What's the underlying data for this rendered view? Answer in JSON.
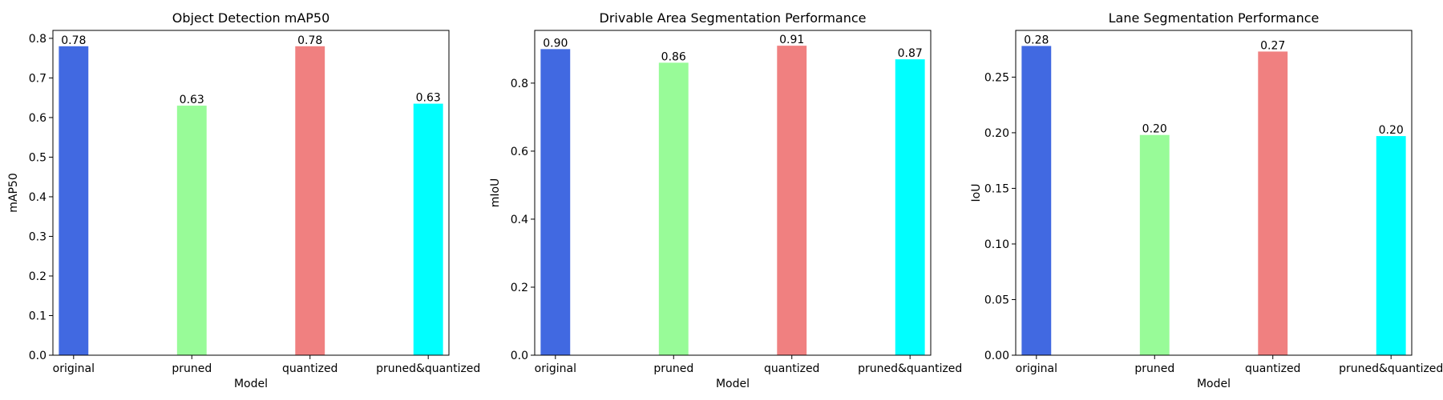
{
  "chart_data": [
    {
      "type": "bar",
      "title": "Object Detection mAP50",
      "xlabel": "Model",
      "ylabel": "mAP50",
      "categories": [
        "original",
        "pruned",
        "quantized",
        "pruned&quantized"
      ],
      "values": [
        0.78,
        0.63,
        0.78,
        0.635
      ],
      "value_labels": [
        "0.78",
        "0.63",
        "0.78",
        "0.63"
      ],
      "colors": [
        "#4169E1",
        "#98FB98",
        "#F08080",
        "#00FFFF"
      ],
      "ylim": [
        0,
        0.82
      ],
      "yticks": [
        0.0,
        0.1,
        0.2,
        0.3,
        0.4,
        0.5,
        0.6,
        0.7,
        0.8
      ],
      "ytick_labels": [
        "0.0",
        "0.1",
        "0.2",
        "0.3",
        "0.4",
        "0.5",
        "0.6",
        "0.7",
        "0.8"
      ],
      "grid": false,
      "legend": "none"
    },
    {
      "type": "bar",
      "title": "Drivable Area Segmentation Performance",
      "xlabel": "Model",
      "ylabel": "mIoU",
      "categories": [
        "original",
        "pruned",
        "quantized",
        "pruned&quantized"
      ],
      "values": [
        0.9,
        0.86,
        0.91,
        0.87
      ],
      "value_labels": [
        "0.90",
        "0.86",
        "0.91",
        "0.87"
      ],
      "colors": [
        "#4169E1",
        "#98FB98",
        "#F08080",
        "#00FFFF"
      ],
      "ylim": [
        0,
        0.955
      ],
      "yticks": [
        0.0,
        0.2,
        0.4,
        0.6,
        0.8
      ],
      "ytick_labels": [
        "0.0",
        "0.2",
        "0.4",
        "0.6",
        "0.8"
      ],
      "grid": false,
      "legend": "none"
    },
    {
      "type": "bar",
      "title": "Lane Segmentation Performance",
      "xlabel": "Model",
      "ylabel": "IoU",
      "categories": [
        "original",
        "pruned",
        "quantized",
        "pruned&quantized"
      ],
      "values": [
        0.278,
        0.198,
        0.273,
        0.197
      ],
      "value_labels": [
        "0.28",
        "0.20",
        "0.27",
        "0.20"
      ],
      "colors": [
        "#4169E1",
        "#98FB98",
        "#F08080",
        "#00FFFF"
      ],
      "ylim": [
        0,
        0.292
      ],
      "yticks": [
        0.0,
        0.05,
        0.1,
        0.15,
        0.2,
        0.25
      ],
      "ytick_labels": [
        "0.00",
        "0.05",
        "0.10",
        "0.15",
        "0.20",
        "0.25"
      ],
      "grid": false,
      "legend": "none"
    }
  ]
}
